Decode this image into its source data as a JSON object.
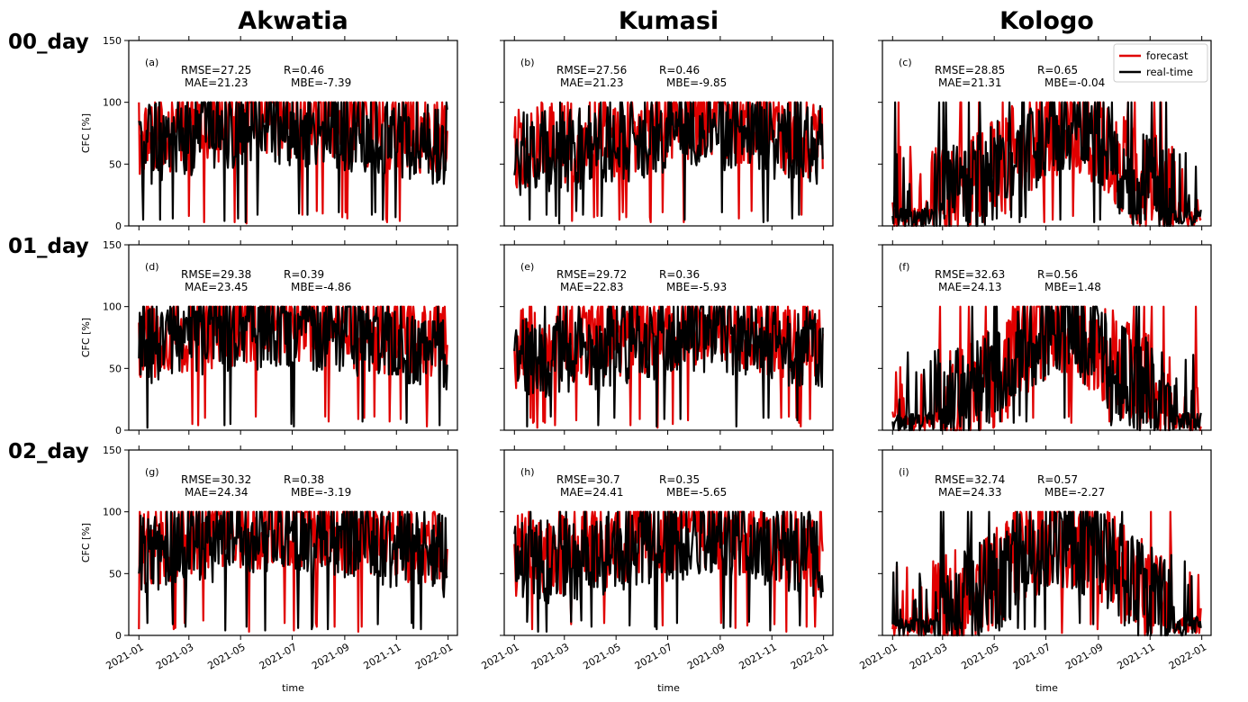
{
  "figure": {
    "columns": [
      "Akwatia",
      "Kumasi",
      "Kologo"
    ],
    "rows": [
      "00_day",
      "01_day",
      "02_day"
    ],
    "ylabel": "CFC [%]",
    "xlabel": "time",
    "colors": {
      "forecast": "#e00000",
      "real_time": "#000000"
    }
  },
  "legend": {
    "forecast": "forecast",
    "real_time": "real-time",
    "placement": "top-right of panel (c)"
  },
  "chart_data": [
    {
      "type": "line",
      "panel": "(a)",
      "column": "Akwatia",
      "row": "00_day",
      "stats": {
        "rmse": "RMSE=27.25",
        "r": "R=0.46",
        "mae": "MAE=21.23",
        "mbe": "MBE=-7.39"
      },
      "profile": "akwatia",
      "seed": 11,
      "xlim": [
        "2020-12-20",
        "2022-01-12"
      ],
      "ylim": [
        0,
        150
      ],
      "xticks": [
        "2021-01",
        "2021-03",
        "2021-05",
        "2021-07",
        "2021-09",
        "2021-11",
        "2022-01"
      ],
      "yticks": [
        0,
        50,
        100,
        150
      ],
      "grid": false,
      "series": [
        {
          "name": "forecast",
          "color": "#e00000"
        },
        {
          "name": "real-time",
          "color": "#000000"
        }
      ]
    },
    {
      "type": "line",
      "panel": "(b)",
      "column": "Kumasi",
      "row": "00_day",
      "stats": {
        "rmse": "RMSE=27.56",
        "r": "R=0.46",
        "mae": "MAE=21.23",
        "mbe": "MBE=-9.85"
      },
      "profile": "kumasi",
      "seed": 23,
      "xlim": [
        "2020-12-20",
        "2022-01-12"
      ],
      "ylim": [
        0,
        150
      ],
      "xticks": [
        "2021-01",
        "2021-03",
        "2021-05",
        "2021-07",
        "2021-09",
        "2021-11",
        "2022-01"
      ],
      "yticks": [
        0,
        50,
        100,
        150
      ],
      "grid": false,
      "series": [
        {
          "name": "forecast",
          "color": "#e00000"
        },
        {
          "name": "real-time",
          "color": "#000000"
        }
      ]
    },
    {
      "type": "line",
      "panel": "(c)",
      "column": "Kologo",
      "row": "00_day",
      "stats": {
        "rmse": "RMSE=28.85",
        "r": "R=0.65",
        "mae": "MAE=21.31",
        "mbe": "MBE=-0.04"
      },
      "profile": "kologo",
      "seed": 37,
      "xlim": [
        "2020-12-20",
        "2022-01-12"
      ],
      "ylim": [
        0,
        150
      ],
      "xticks": [
        "2021-01",
        "2021-03",
        "2021-05",
        "2021-07",
        "2021-09",
        "2021-11",
        "2022-01"
      ],
      "yticks": [
        0,
        50,
        100,
        150
      ],
      "grid": false,
      "series": [
        {
          "name": "forecast",
          "color": "#e00000"
        },
        {
          "name": "real-time",
          "color": "#000000"
        }
      ]
    },
    {
      "type": "line",
      "panel": "(d)",
      "column": "Akwatia",
      "row": "01_day",
      "stats": {
        "rmse": "RMSE=29.38",
        "r": "R=0.39",
        "mae": "MAE=23.45",
        "mbe": "MBE=-4.86"
      },
      "profile": "akwatia",
      "seed": 41,
      "xlim": [
        "2020-12-20",
        "2022-01-12"
      ],
      "ylim": [
        0,
        150
      ],
      "xticks": [
        "2021-01",
        "2021-03",
        "2021-05",
        "2021-07",
        "2021-09",
        "2021-11",
        "2022-01"
      ],
      "yticks": [
        0,
        50,
        100,
        150
      ],
      "grid": false,
      "series": [
        {
          "name": "forecast",
          "color": "#e00000"
        },
        {
          "name": "real-time",
          "color": "#000000"
        }
      ]
    },
    {
      "type": "line",
      "panel": "(e)",
      "column": "Kumasi",
      "row": "01_day",
      "stats": {
        "rmse": "RMSE=29.72",
        "r": "R=0.36",
        "mae": "MAE=22.83",
        "mbe": "MBE=-5.93"
      },
      "profile": "kumasi",
      "seed": 53,
      "xlim": [
        "2020-12-20",
        "2022-01-12"
      ],
      "ylim": [
        0,
        150
      ],
      "xticks": [
        "2021-01",
        "2021-03",
        "2021-05",
        "2021-07",
        "2021-09",
        "2021-11",
        "2022-01"
      ],
      "yticks": [
        0,
        50,
        100,
        150
      ],
      "grid": false,
      "series": [
        {
          "name": "forecast",
          "color": "#e00000"
        },
        {
          "name": "real-time",
          "color": "#000000"
        }
      ]
    },
    {
      "type": "line",
      "panel": "(f)",
      "column": "Kologo",
      "row": "01_day",
      "stats": {
        "rmse": "RMSE=32.63",
        "r": "R=0.56",
        "mae": "MAE=24.13",
        "mbe": "MBE=1.48"
      },
      "profile": "kologo",
      "seed": 67,
      "xlim": [
        "2020-12-20",
        "2022-01-12"
      ],
      "ylim": [
        0,
        150
      ],
      "xticks": [
        "2021-01",
        "2021-03",
        "2021-05",
        "2021-07",
        "2021-09",
        "2021-11",
        "2022-01"
      ],
      "yticks": [
        0,
        50,
        100,
        150
      ],
      "grid": false,
      "series": [
        {
          "name": "forecast",
          "color": "#e00000"
        },
        {
          "name": "real-time",
          "color": "#000000"
        }
      ]
    },
    {
      "type": "line",
      "panel": "(g)",
      "column": "Akwatia",
      "row": "02_day",
      "stats": {
        "rmse": "RMSE=30.32",
        "r": "R=0.38",
        "mae": "MAE=24.34",
        "mbe": "MBE=-3.19"
      },
      "profile": "akwatia",
      "seed": 71,
      "xlim": [
        "2020-12-20",
        "2022-01-12"
      ],
      "ylim": [
        0,
        150
      ],
      "xticks": [
        "2021-01",
        "2021-03",
        "2021-05",
        "2021-07",
        "2021-09",
        "2021-11",
        "2022-01"
      ],
      "yticks": [
        0,
        50,
        100,
        150
      ],
      "grid": false,
      "series": [
        {
          "name": "forecast",
          "color": "#e00000"
        },
        {
          "name": "real-time",
          "color": "#000000"
        }
      ]
    },
    {
      "type": "line",
      "panel": "(h)",
      "column": "Kumasi",
      "row": "02_day",
      "stats": {
        "rmse": "RMSE=30.7",
        "r": "R=0.35",
        "mae": "MAE=24.41",
        "mbe": "MBE=-5.65"
      },
      "profile": "kumasi",
      "seed": 83,
      "xlim": [
        "2020-12-20",
        "2022-01-12"
      ],
      "ylim": [
        0,
        150
      ],
      "xticks": [
        "2021-01",
        "2021-03",
        "2021-05",
        "2021-07",
        "2021-09",
        "2021-11",
        "2022-01"
      ],
      "yticks": [
        0,
        50,
        100,
        150
      ],
      "grid": false,
      "series": [
        {
          "name": "forecast",
          "color": "#e00000"
        },
        {
          "name": "real-time",
          "color": "#000000"
        }
      ]
    },
    {
      "type": "line",
      "panel": "(i)",
      "column": "Kologo",
      "row": "02_day",
      "stats": {
        "rmse": "RMSE=32.74",
        "r": "R=0.57",
        "mae": "MAE=24.33",
        "mbe": "MBE=-2.27"
      },
      "profile": "kologo",
      "seed": 97,
      "xlim": [
        "2020-12-20",
        "2022-01-12"
      ],
      "ylim": [
        0,
        150
      ],
      "xticks": [
        "2021-01",
        "2021-03",
        "2021-05",
        "2021-07",
        "2021-09",
        "2021-11",
        "2022-01"
      ],
      "yticks": [
        0,
        50,
        100,
        150
      ],
      "grid": false,
      "series": [
        {
          "name": "forecast",
          "color": "#e00000"
        },
        {
          "name": "real-time",
          "color": "#000000"
        }
      ]
    }
  ]
}
